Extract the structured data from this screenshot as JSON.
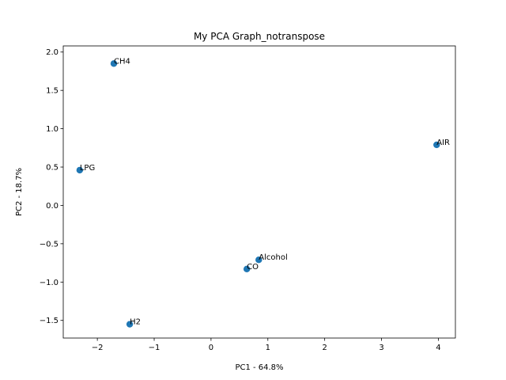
{
  "chart_data": {
    "type": "scatter",
    "title": "My PCA Graph_notranspose",
    "xlabel": "PC1 - 64.8%",
    "ylabel": "PC2 - 18.7%",
    "xlim": [
      -2.6,
      4.3
    ],
    "ylim": [
      -1.73,
      2.08
    ],
    "xticks": [
      -2,
      -1,
      0,
      1,
      2,
      3,
      4
    ],
    "xtick_labels": [
      "−2",
      "−1",
      "0",
      "1",
      "2",
      "3",
      "4"
    ],
    "yticks": [
      -1.5,
      -1.0,
      -0.5,
      0.0,
      0.5,
      1.0,
      1.5,
      2.0
    ],
    "ytick_labels": [
      "−1.5",
      "−1.0",
      "−0.5",
      "0.0",
      "0.5",
      "1.0",
      "1.5",
      "2.0"
    ],
    "grid": false,
    "marker_color": "#1f77b4",
    "points": [
      {
        "label": "CH4",
        "x": -1.71,
        "y": 1.85
      },
      {
        "label": "LPG",
        "x": -2.31,
        "y": 0.46
      },
      {
        "label": "AIR",
        "x": 3.97,
        "y": 0.79
      },
      {
        "label": "Alcohol",
        "x": 0.84,
        "y": -0.71
      },
      {
        "label": "CO",
        "x": 0.63,
        "y": -0.83
      },
      {
        "label": "H2",
        "x": -1.43,
        "y": -1.55
      }
    ]
  }
}
